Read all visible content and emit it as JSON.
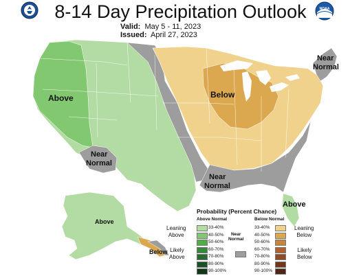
{
  "title": "8-14 Day Precipitation Outlook",
  "valid": {
    "label": "Valid:",
    "value": "May 5 - 11, 2023"
  },
  "issued": {
    "label": "Issued:",
    "value": "April 27, 2023"
  },
  "logos": {
    "left": "doc-seal-icon",
    "right": "noaa-logo-icon",
    "right_text": "NOAA"
  },
  "map_labels": {
    "above_west": "Above",
    "below_mw": "Below",
    "near_normal_ne_1": "Near",
    "near_normal_ne_2": "Normal",
    "near_normal_sw_1": "Near",
    "near_normal_sw_2": "Normal",
    "near_normal_gulf_1": "Near",
    "near_normal_gulf_2": "Normal",
    "above_fl": "Above",
    "above_ak": "Above",
    "below_ak": "Below"
  },
  "colors": {
    "above_33_40": "#b3dca4",
    "above_40_50": "#81c871",
    "below_33_40": "#f0d28c",
    "below_40_50": "#dba84f",
    "near_normal": "#9d9d9d",
    "water": "#ffffff",
    "borders": "#ffffff"
  },
  "legend": {
    "title": "Probability (Percent Chance)",
    "above_header": "Above Normal",
    "near_header_1": "Near",
    "near_header_2": "Normal",
    "below_header": "Below Normal",
    "leaning_above_1": "Leaning",
    "leaning_above_2": "Above",
    "likely_above_1": "Likely",
    "likely_above_2": "Above",
    "leaning_below_1": "Leaning",
    "leaning_below_2": "Below",
    "likely_below_1": "Likely",
    "likely_below_2": "Below",
    "above_bins": [
      {
        "label": "33-40%",
        "color": "#b3dca4"
      },
      {
        "label": "40-50%",
        "color": "#81c871"
      },
      {
        "label": "50-60%",
        "color": "#4fae45"
      },
      {
        "label": "60-70%",
        "color": "#34893a"
      },
      {
        "label": "70-80%",
        "color": "#276b2f"
      },
      {
        "label": "80-90%",
        "color": "#1b5224"
      },
      {
        "label": "90-100%",
        "color": "#0f3817"
      }
    ],
    "below_bins": [
      {
        "label": "33-40%",
        "color": "#f0d28c"
      },
      {
        "label": "40-50%",
        "color": "#dba84f"
      },
      {
        "label": "50-60%",
        "color": "#c7853a"
      },
      {
        "label": "60-70%",
        "color": "#b1612d"
      },
      {
        "label": "70-80%",
        "color": "#934a23"
      },
      {
        "label": "80-90%",
        "color": "#72371b"
      },
      {
        "label": "90-100%",
        "color": "#4f2513"
      }
    ],
    "near_color": "#9d9d9d"
  }
}
